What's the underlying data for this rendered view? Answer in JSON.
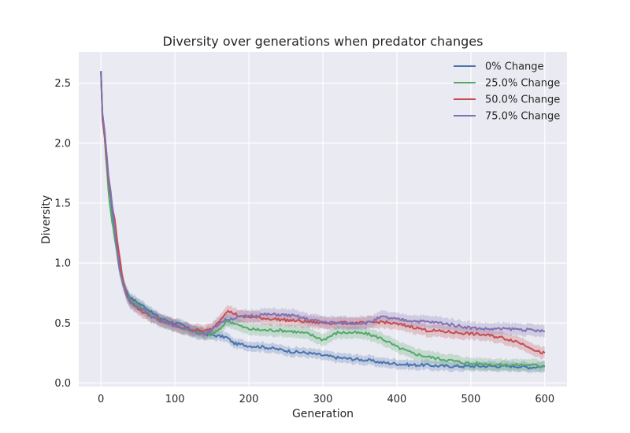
{
  "chart_data": {
    "type": "line",
    "title": "Diversity over generations when predator changes",
    "xlabel": "Generation",
    "ylabel": "Diversity",
    "xlim": [
      -30,
      630
    ],
    "ylim": [
      -0.03,
      2.76
    ],
    "xticks": [
      0,
      100,
      200,
      300,
      400,
      500,
      600
    ],
    "yticks": [
      0.0,
      0.5,
      1.0,
      1.5,
      2.0,
      2.5
    ],
    "xtick_labels": [
      "0",
      "100",
      "200",
      "300",
      "400",
      "500",
      "600"
    ],
    "ytick_labels": [
      "0.0",
      "0.5",
      "1.0",
      "1.5",
      "2.0",
      "2.5"
    ],
    "grid": true,
    "background": "#EAEAF2",
    "legend_position": "top-right",
    "has_confidence_band": true,
    "series": [
      {
        "name": "0% Change",
        "color": "#4C72B0",
        "band": 0.04,
        "points": [
          [
            0,
            2.6
          ],
          [
            2,
            2.2
          ],
          [
            5,
            2.05
          ],
          [
            10,
            1.7
          ],
          [
            15,
            1.45
          ],
          [
            20,
            1.2
          ],
          [
            25,
            1.0
          ],
          [
            30,
            0.85
          ],
          [
            35,
            0.76
          ],
          [
            40,
            0.71
          ],
          [
            50,
            0.67
          ],
          [
            60,
            0.63
          ],
          [
            70,
            0.58
          ],
          [
            80,
            0.54
          ],
          [
            90,
            0.52
          ],
          [
            100,
            0.5
          ],
          [
            110,
            0.48
          ],
          [
            120,
            0.45
          ],
          [
            130,
            0.43
          ],
          [
            140,
            0.41
          ],
          [
            150,
            0.4
          ],
          [
            160,
            0.39
          ],
          [
            170,
            0.38
          ],
          [
            180,
            0.33
          ],
          [
            200,
            0.31
          ],
          [
            220,
            0.3
          ],
          [
            240,
            0.28
          ],
          [
            260,
            0.26
          ],
          [
            280,
            0.25
          ],
          [
            300,
            0.23
          ],
          [
            320,
            0.21
          ],
          [
            340,
            0.2
          ],
          [
            360,
            0.19
          ],
          [
            380,
            0.17
          ],
          [
            400,
            0.16
          ],
          [
            420,
            0.15
          ],
          [
            440,
            0.15
          ],
          [
            460,
            0.14
          ],
          [
            480,
            0.14
          ],
          [
            500,
            0.14
          ],
          [
            520,
            0.14
          ],
          [
            540,
            0.14
          ],
          [
            560,
            0.14
          ],
          [
            580,
            0.13
          ],
          [
            600,
            0.14
          ]
        ]
      },
      {
        "name": "25.0% Change",
        "color": "#55A868",
        "band": 0.05,
        "points": [
          [
            0,
            2.6
          ],
          [
            2,
            2.2
          ],
          [
            5,
            2.05
          ],
          [
            10,
            1.6
          ],
          [
            15,
            1.35
          ],
          [
            20,
            1.15
          ],
          [
            25,
            0.95
          ],
          [
            30,
            0.82
          ],
          [
            35,
            0.74
          ],
          [
            40,
            0.69
          ],
          [
            50,
            0.65
          ],
          [
            60,
            0.6
          ],
          [
            70,
            0.56
          ],
          [
            80,
            0.52
          ],
          [
            90,
            0.5
          ],
          [
            100,
            0.48
          ],
          [
            110,
            0.46
          ],
          [
            120,
            0.44
          ],
          [
            130,
            0.42
          ],
          [
            140,
            0.41
          ],
          [
            150,
            0.41
          ],
          [
            160,
            0.44
          ],
          [
            170,
            0.52
          ],
          [
            180,
            0.5
          ],
          [
            190,
            0.47
          ],
          [
            200,
            0.45
          ],
          [
            220,
            0.44
          ],
          [
            240,
            0.44
          ],
          [
            260,
            0.43
          ],
          [
            280,
            0.41
          ],
          [
            300,
            0.36
          ],
          [
            310,
            0.39
          ],
          [
            320,
            0.42
          ],
          [
            340,
            0.42
          ],
          [
            360,
            0.41
          ],
          [
            380,
            0.37
          ],
          [
            400,
            0.3
          ],
          [
            420,
            0.25
          ],
          [
            440,
            0.22
          ],
          [
            460,
            0.2
          ],
          [
            480,
            0.18
          ],
          [
            500,
            0.16
          ],
          [
            520,
            0.16
          ],
          [
            540,
            0.15
          ],
          [
            560,
            0.15
          ],
          [
            580,
            0.15
          ],
          [
            600,
            0.14
          ]
        ]
      },
      {
        "name": "50.0% Change",
        "color": "#C44E52",
        "band": 0.05,
        "points": [
          [
            0,
            2.6
          ],
          [
            2,
            2.2
          ],
          [
            5,
            2.05
          ],
          [
            10,
            1.7
          ],
          [
            15,
            1.5
          ],
          [
            20,
            1.3
          ],
          [
            25,
            1.05
          ],
          [
            30,
            0.85
          ],
          [
            35,
            0.73
          ],
          [
            40,
            0.68
          ],
          [
            50,
            0.62
          ],
          [
            60,
            0.58
          ],
          [
            70,
            0.55
          ],
          [
            80,
            0.52
          ],
          [
            90,
            0.5
          ],
          [
            100,
            0.48
          ],
          [
            110,
            0.46
          ],
          [
            120,
            0.45
          ],
          [
            130,
            0.44
          ],
          [
            140,
            0.43
          ],
          [
            150,
            0.45
          ],
          [
            160,
            0.52
          ],
          [
            170,
            0.6
          ],
          [
            180,
            0.58
          ],
          [
            190,
            0.55
          ],
          [
            200,
            0.55
          ],
          [
            220,
            0.54
          ],
          [
            240,
            0.53
          ],
          [
            260,
            0.52
          ],
          [
            280,
            0.51
          ],
          [
            300,
            0.5
          ],
          [
            320,
            0.5
          ],
          [
            340,
            0.5
          ],
          [
            360,
            0.5
          ],
          [
            380,
            0.51
          ],
          [
            400,
            0.49
          ],
          [
            420,
            0.47
          ],
          [
            440,
            0.44
          ],
          [
            460,
            0.43
          ],
          [
            480,
            0.42
          ],
          [
            500,
            0.41
          ],
          [
            520,
            0.4
          ],
          [
            540,
            0.38
          ],
          [
            560,
            0.35
          ],
          [
            580,
            0.3
          ],
          [
            590,
            0.26
          ],
          [
            600,
            0.25
          ]
        ]
      },
      {
        "name": "75.0% Change",
        "color": "#8172B2",
        "band": 0.05,
        "points": [
          [
            0,
            2.6
          ],
          [
            2,
            2.25
          ],
          [
            5,
            2.1
          ],
          [
            10,
            1.75
          ],
          [
            15,
            1.5
          ],
          [
            20,
            1.2
          ],
          [
            25,
            0.95
          ],
          [
            30,
            0.82
          ],
          [
            35,
            0.72
          ],
          [
            40,
            0.67
          ],
          [
            50,
            0.63
          ],
          [
            60,
            0.59
          ],
          [
            70,
            0.55
          ],
          [
            80,
            0.52
          ],
          [
            90,
            0.5
          ],
          [
            100,
            0.48
          ],
          [
            110,
            0.46
          ],
          [
            120,
            0.44
          ],
          [
            130,
            0.42
          ],
          [
            140,
            0.41
          ],
          [
            150,
            0.44
          ],
          [
            160,
            0.5
          ],
          [
            170,
            0.53
          ],
          [
            180,
            0.54
          ],
          [
            190,
            0.55
          ],
          [
            200,
            0.56
          ],
          [
            220,
            0.57
          ],
          [
            240,
            0.57
          ],
          [
            260,
            0.56
          ],
          [
            280,
            0.53
          ],
          [
            300,
            0.51
          ],
          [
            320,
            0.5
          ],
          [
            340,
            0.5
          ],
          [
            360,
            0.5
          ],
          [
            380,
            0.55
          ],
          [
            400,
            0.53
          ],
          [
            420,
            0.52
          ],
          [
            440,
            0.51
          ],
          [
            460,
            0.5
          ],
          [
            480,
            0.48
          ],
          [
            500,
            0.46
          ],
          [
            520,
            0.45
          ],
          [
            540,
            0.45
          ],
          [
            560,
            0.45
          ],
          [
            580,
            0.44
          ],
          [
            600,
            0.43
          ]
        ]
      }
    ]
  }
}
